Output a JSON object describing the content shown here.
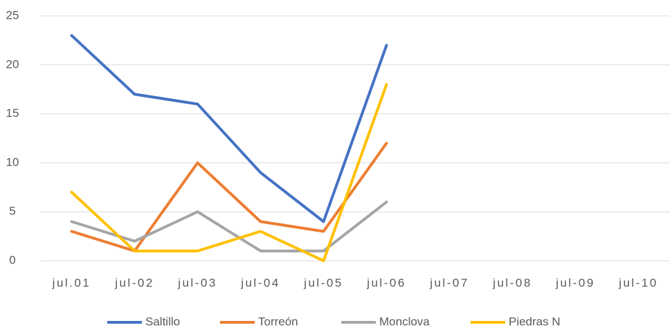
{
  "chart_data": {
    "type": "line",
    "categories": [
      "jul.01",
      "jul-02",
      "jul-03",
      "jul-04",
      "jul-05",
      "jul-06",
      "jul-07",
      "jul-08",
      "jul-09",
      "jul-10"
    ],
    "series": [
      {
        "name": "Saltillo",
        "color": "#4472c4",
        "values": [
          23,
          17,
          16,
          9,
          4,
          22,
          null,
          null,
          null,
          null
        ]
      },
      {
        "name": "Torreón",
        "color": "#ed7d31",
        "values": [
          3,
          1,
          10,
          4,
          3,
          12,
          null,
          null,
          null,
          null
        ]
      },
      {
        "name": "Monclova",
        "color": "#a5a5a5",
        "values": [
          4,
          2,
          5,
          1,
          1,
          6,
          null,
          null,
          null,
          null
        ]
      },
      {
        "name": "Piedras N",
        "color": "#ffc000",
        "values": [
          7,
          1,
          1,
          3,
          0,
          18,
          null,
          null,
          null,
          null
        ]
      }
    ],
    "ylim": [
      0,
      25
    ],
    "yticks": [
      0,
      5,
      10,
      15,
      20,
      25
    ],
    "grid": true,
    "legend": "bottom"
  }
}
